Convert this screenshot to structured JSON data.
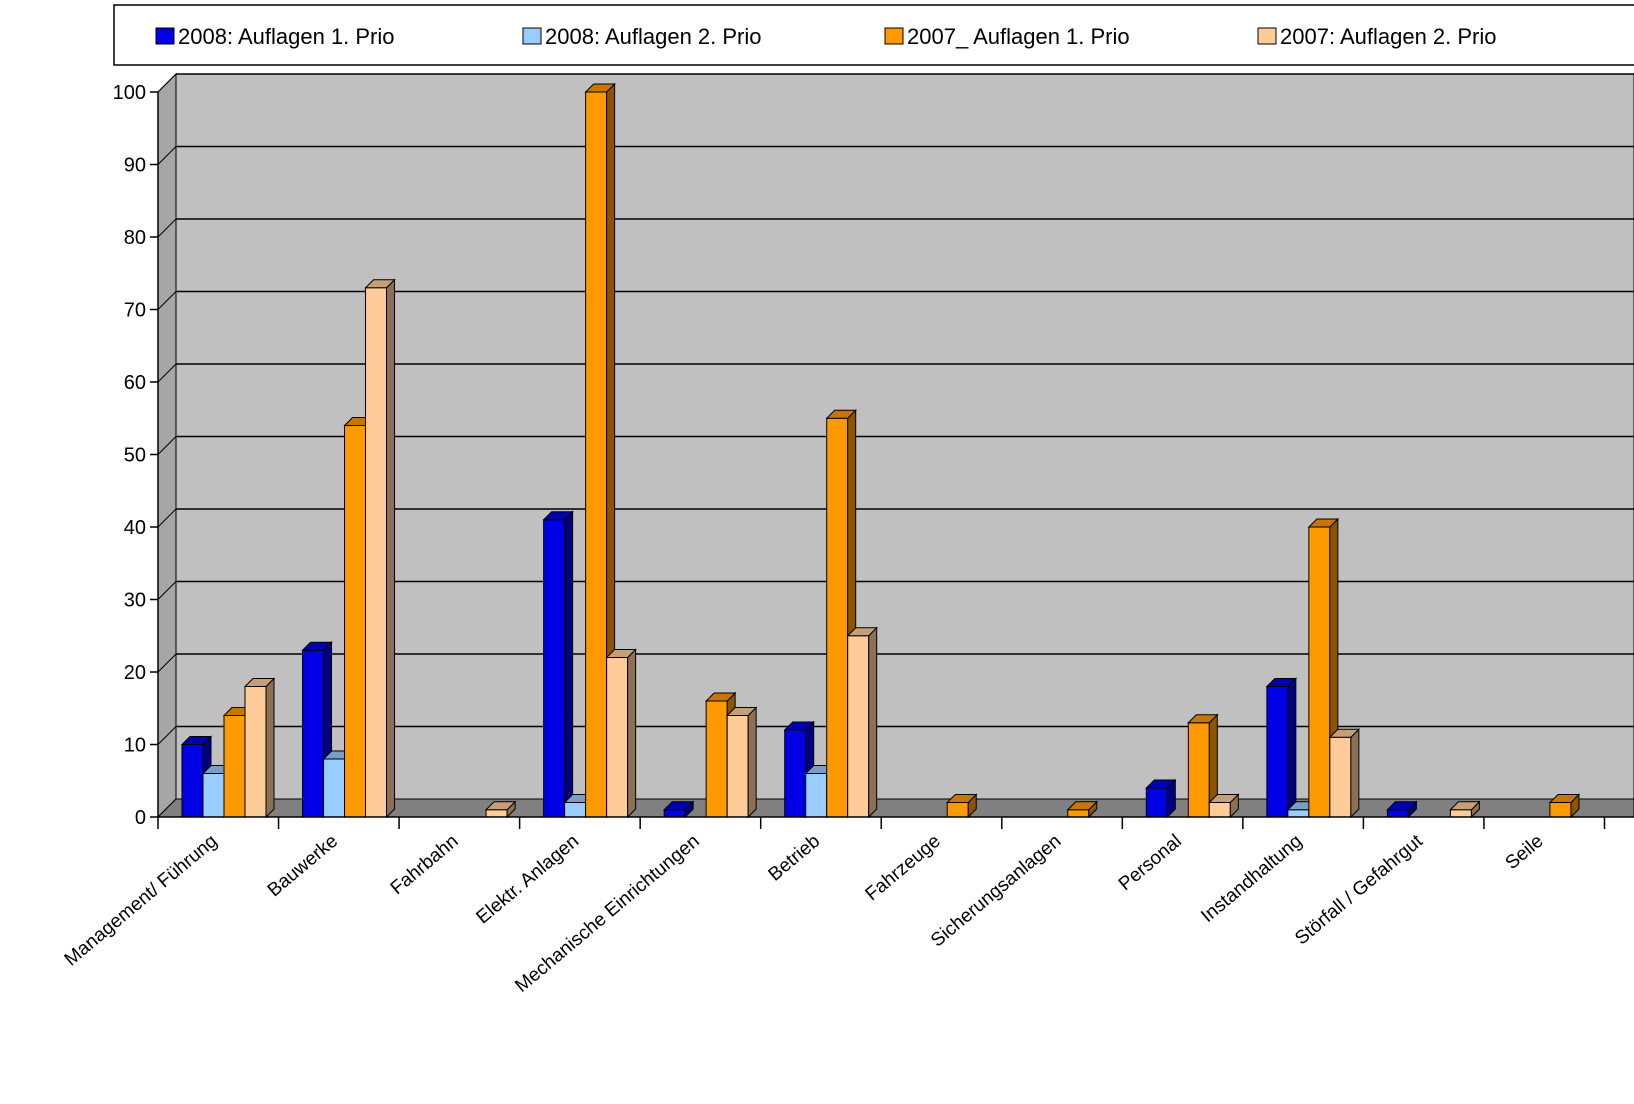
{
  "chart_data": {
    "type": "bar",
    "title": "",
    "xlabel": "",
    "ylabel": "",
    "ylim": [
      0,
      100
    ],
    "yticks": [
      "0",
      "10",
      "20",
      "30",
      "40",
      "50",
      "60",
      "70",
      "80",
      "90",
      "100"
    ],
    "grid": true,
    "legend_position": "top",
    "categories": [
      "Management/ Führung",
      "Bauwerke",
      "Fahrbahn",
      "Elektr. Anlagen",
      "Mechanische Einrichtungen",
      "Betrieb",
      "Fahrzeuge",
      "Sicherungsanlagen",
      "Personal",
      "Instandhaltung",
      "Störfall / Gefahrgut",
      "Seile"
    ],
    "series": [
      {
        "name": "2008: Auflagen 1. Prio",
        "color": "#0000e6",
        "values": [
          10,
          23,
          0,
          41,
          1,
          12,
          0,
          0,
          4,
          18,
          1,
          0
        ]
      },
      {
        "name": "2008: Auflagen 2. Prio",
        "color": "#99ccff",
        "values": [
          6,
          8,
          0,
          2,
          0,
          6,
          0,
          0,
          0,
          1,
          0,
          0
        ]
      },
      {
        "name": "2007_ Auflagen 1. Prio",
        "color": "#ff9900",
        "values": [
          14,
          54,
          0,
          100,
          16,
          55,
          2,
          1,
          13,
          40,
          0,
          2
        ]
      },
      {
        "name": "2007: Auflagen 2. Prio",
        "color": "#ffcc99",
        "values": [
          18,
          73,
          1,
          22,
          14,
          25,
          0,
          0,
          2,
          11,
          1,
          0
        ]
      }
    ],
    "colors": {
      "plot_back": "#c0c0c0",
      "plot_side": "#a6a6a6",
      "plot_floor": "#808080",
      "grid": "#000000"
    }
  }
}
